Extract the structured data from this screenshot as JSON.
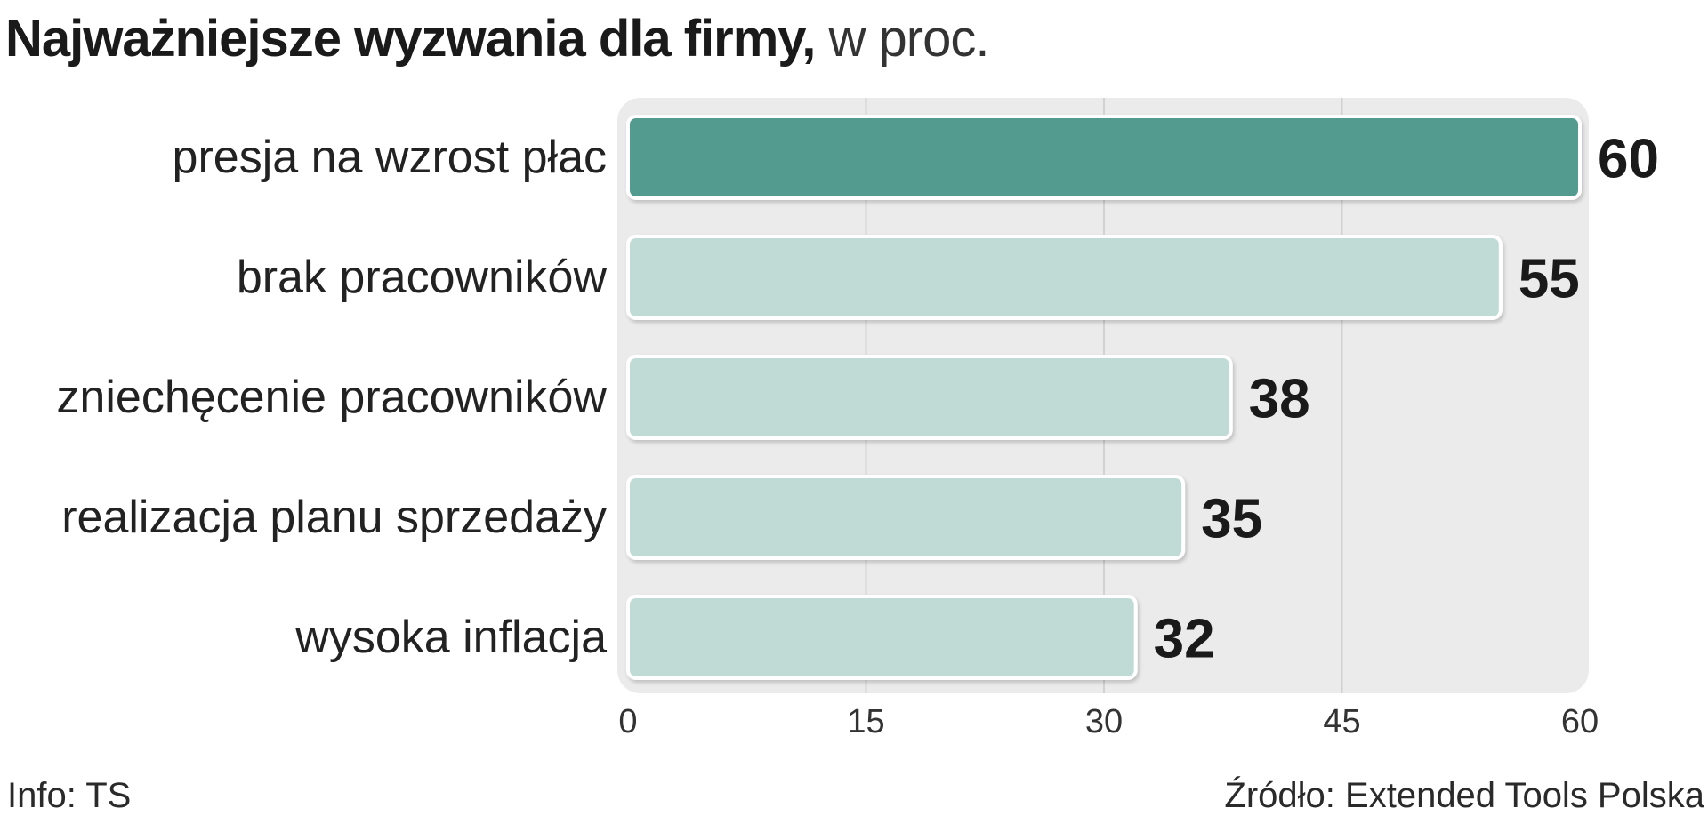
{
  "title": {
    "main": "Najważniejsze wyzwania dla firmy,",
    "sub": " w proc."
  },
  "footer": {
    "info": "Info: TS",
    "source": "Źródło: Extended Tools Polska"
  },
  "colors": {
    "highlight_bar": "#529b8f",
    "bar": "#c0dbd5",
    "plot_bg": "#ebebeb",
    "grid": "#d2d2d2",
    "text": "#222222"
  },
  "chart_data": {
    "type": "bar",
    "orientation": "horizontal",
    "categories": [
      "presja na wzrost płac",
      "brak pracowników",
      "zniechęcenie pracowników",
      "realizacja planu sprzedaży",
      "wysoka inflacja"
    ],
    "values": [
      60,
      55,
      38,
      35,
      32
    ],
    "value_labels": [
      "60",
      "55",
      "38",
      "35",
      "32"
    ],
    "highlighted_index": 0,
    "xlim": [
      0,
      60
    ],
    "xticks": [
      0,
      15,
      30,
      45,
      60
    ],
    "xtick_labels": [
      "0",
      "15",
      "30",
      "45",
      "60"
    ],
    "grid": true,
    "legend": false
  }
}
